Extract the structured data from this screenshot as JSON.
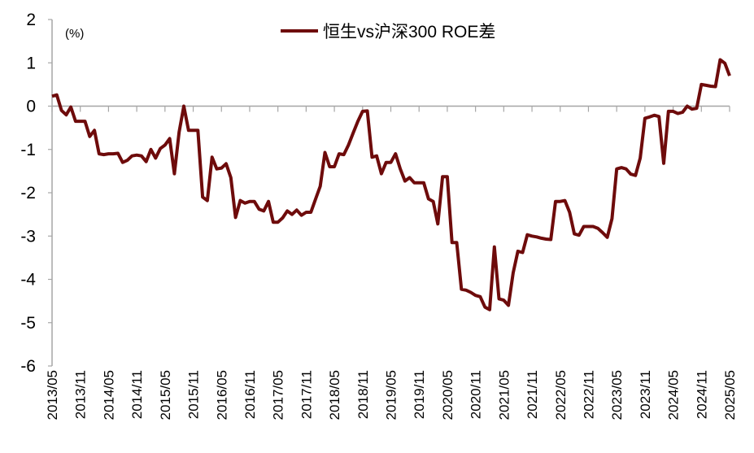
{
  "chart_data": {
    "type": "line",
    "title": "",
    "unit_label": "(%)",
    "xlabel": "",
    "ylabel": "",
    "ylim": [
      -6,
      2
    ],
    "yticks": [
      2,
      1,
      0,
      -1,
      -2,
      -3,
      -4,
      -5,
      -6
    ],
    "xtick_labels": [
      "2013/05",
      "2013/11",
      "2014/05",
      "2014/11",
      "2015/05",
      "2015/11",
      "2016/05",
      "2016/11",
      "2017/05",
      "2017/11",
      "2018/05",
      "2018/11",
      "2019/05",
      "2019/11",
      "2020/05",
      "2020/11",
      "2021/05",
      "2021/11",
      "2022/05",
      "2022/11",
      "2023/05",
      "2023/11",
      "2024/05",
      "2024/11",
      "2025/05"
    ],
    "grid": false,
    "legend_position": "top",
    "colors": {
      "series": "#6e0b0b",
      "axis": "#a6a6a6"
    },
    "x": [
      "2013/05",
      "2013/06",
      "2013/07",
      "2013/08",
      "2013/09",
      "2013/10",
      "2013/11",
      "2013/12",
      "2014/01",
      "2014/02",
      "2014/03",
      "2014/04",
      "2014/05",
      "2014/06",
      "2014/07",
      "2014/08",
      "2014/09",
      "2014/10",
      "2014/11",
      "2014/12",
      "2015/01",
      "2015/02",
      "2015/03",
      "2015/04",
      "2015/05",
      "2015/06",
      "2015/07",
      "2015/08",
      "2015/09",
      "2015/10",
      "2015/11",
      "2015/12",
      "2016/01",
      "2016/02",
      "2016/03",
      "2016/04",
      "2016/05",
      "2016/06",
      "2016/07",
      "2016/08",
      "2016/09",
      "2016/10",
      "2016/11",
      "2016/12",
      "2017/01",
      "2017/02",
      "2017/03",
      "2017/04",
      "2017/05",
      "2017/06",
      "2017/07",
      "2017/08",
      "2017/09",
      "2017/10",
      "2017/11",
      "2017/12",
      "2018/01",
      "2018/02",
      "2018/03",
      "2018/04",
      "2018/05",
      "2018/06",
      "2018/07",
      "2018/08",
      "2018/09",
      "2018/10",
      "2018/11",
      "2018/12",
      "2019/01",
      "2019/02",
      "2019/03",
      "2019/04",
      "2019/05",
      "2019/06",
      "2019/07",
      "2019/08",
      "2019/09",
      "2019/10",
      "2019/11",
      "2019/12",
      "2020/01",
      "2020/02",
      "2020/03",
      "2020/04",
      "2020/05",
      "2020/06",
      "2020/07",
      "2020/08",
      "2020/09",
      "2020/10",
      "2020/11",
      "2020/12",
      "2021/01",
      "2021/02",
      "2021/03",
      "2021/04",
      "2021/05",
      "2021/06",
      "2021/07",
      "2021/08",
      "2021/09",
      "2021/10",
      "2021/11",
      "2021/12",
      "2022/01",
      "2022/02",
      "2022/03",
      "2022/04",
      "2022/05",
      "2022/06",
      "2022/07",
      "2022/08",
      "2022/09",
      "2022/10",
      "2022/11",
      "2022/12",
      "2023/01",
      "2023/02",
      "2023/03",
      "2023/04",
      "2023/05",
      "2023/06",
      "2023/07",
      "2023/08",
      "2023/09",
      "2023/10",
      "2023/11",
      "2023/12",
      "2024/01",
      "2024/02",
      "2024/03",
      "2024/04",
      "2024/05",
      "2024/06",
      "2024/07",
      "2024/08",
      "2024/09",
      "2024/10",
      "2024/11",
      "2024/12",
      "2025/01",
      "2025/02",
      "2025/03",
      "2025/04",
      "2025/05"
    ],
    "series": [
      {
        "name": "恒生vs沪深300 ROE差",
        "values": [
          0.23,
          0.26,
          -0.1,
          -0.2,
          -0.02,
          -0.35,
          -0.35,
          -0.35,
          -0.7,
          -0.56,
          -1.1,
          -1.12,
          -1.1,
          -1.1,
          -1.09,
          -1.3,
          -1.25,
          -1.15,
          -1.13,
          -1.15,
          -1.28,
          -1.0,
          -1.2,
          -0.98,
          -0.9,
          -0.75,
          -1.56,
          -0.6,
          0.0,
          -0.56,
          -0.56,
          -0.56,
          -2.1,
          -2.18,
          -1.18,
          -1.45,
          -1.43,
          -1.33,
          -1.65,
          -2.57,
          -2.18,
          -2.24,
          -2.2,
          -2.2,
          -2.38,
          -2.42,
          -2.2,
          -2.68,
          -2.68,
          -2.58,
          -2.42,
          -2.5,
          -2.4,
          -2.52,
          -2.45,
          -2.45,
          -2.15,
          -1.85,
          -1.07,
          -1.4,
          -1.4,
          -1.1,
          -1.12,
          -0.9,
          -0.62,
          -0.35,
          -0.12,
          -0.11,
          -1.18,
          -1.15,
          -1.56,
          -1.3,
          -1.3,
          -1.1,
          -1.45,
          -1.73,
          -1.65,
          -1.77,
          -1.77,
          -1.77,
          -2.14,
          -2.2,
          -2.72,
          -1.63,
          -1.63,
          -3.15,
          -3.15,
          -4.23,
          -4.25,
          -4.3,
          -4.37,
          -4.4,
          -4.64,
          -4.7,
          -3.25,
          -4.45,
          -4.48,
          -4.6,
          -3.85,
          -3.35,
          -3.38,
          -2.97,
          -3.0,
          -3.02,
          -3.05,
          -3.07,
          -3.08,
          -2.2,
          -2.2,
          -2.18,
          -2.45,
          -2.95,
          -2.98,
          -2.78,
          -2.78,
          -2.78,
          -2.82,
          -2.92,
          -3.03,
          -2.6,
          -1.45,
          -1.42,
          -1.45,
          -1.57,
          -1.6,
          -1.2,
          -0.28,
          -0.25,
          -0.21,
          -0.24,
          -1.32,
          -0.12,
          -0.12,
          -0.17,
          -0.14,
          0.0,
          -0.07,
          -0.05,
          0.5,
          0.48,
          0.46,
          0.45,
          1.07,
          0.99,
          0.7
        ]
      }
    ]
  }
}
